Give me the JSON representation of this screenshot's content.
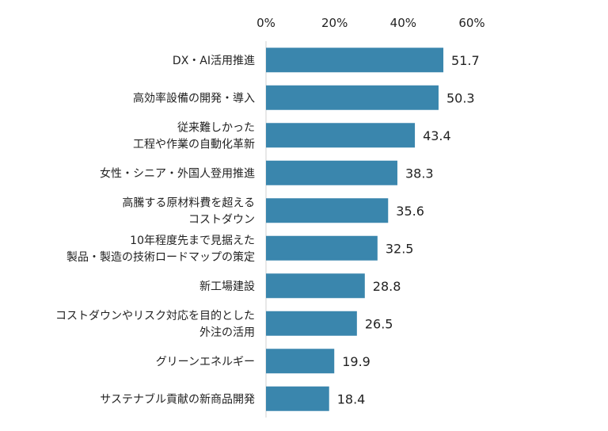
{
  "chart_data": {
    "type": "bar",
    "orientation": "horizontal",
    "title": "",
    "xlabel": "",
    "ylabel": "",
    "xlim": [
      0,
      60
    ],
    "x_ticks": [
      "0%",
      "20%",
      "40%",
      "60%"
    ],
    "axis_position": "top",
    "grid": false,
    "bar_color": "#3a86ad",
    "categories": [
      [
        "DX・AI活用推進"
      ],
      [
        "高効率設備の開発・導入"
      ],
      [
        "従来難しかった",
        "工程や作業の自動化革新"
      ],
      [
        "女性・シニア・外国人登用推進"
      ],
      [
        "高騰する原材料費を超える",
        "コストダウン"
      ],
      [
        "10年程度先まで見据えた",
        "製品・製造の技術ロードマップの策定"
      ],
      [
        "新工場建設"
      ],
      [
        "コストダウンやリスク対応を目的とした",
        "外注の活用"
      ],
      [
        "グリーンエネルギー"
      ],
      [
        "サステナブル貢献の新商品開発"
      ]
    ],
    "values": [
      51.7,
      50.3,
      43.4,
      38.3,
      35.6,
      32.5,
      28.8,
      26.5,
      19.9,
      18.4
    ],
    "value_labels": [
      "51.7",
      "50.3",
      "43.4",
      "38.3",
      "35.6",
      "32.5",
      "28.8",
      "26.5",
      "19.9",
      "18.4"
    ]
  }
}
